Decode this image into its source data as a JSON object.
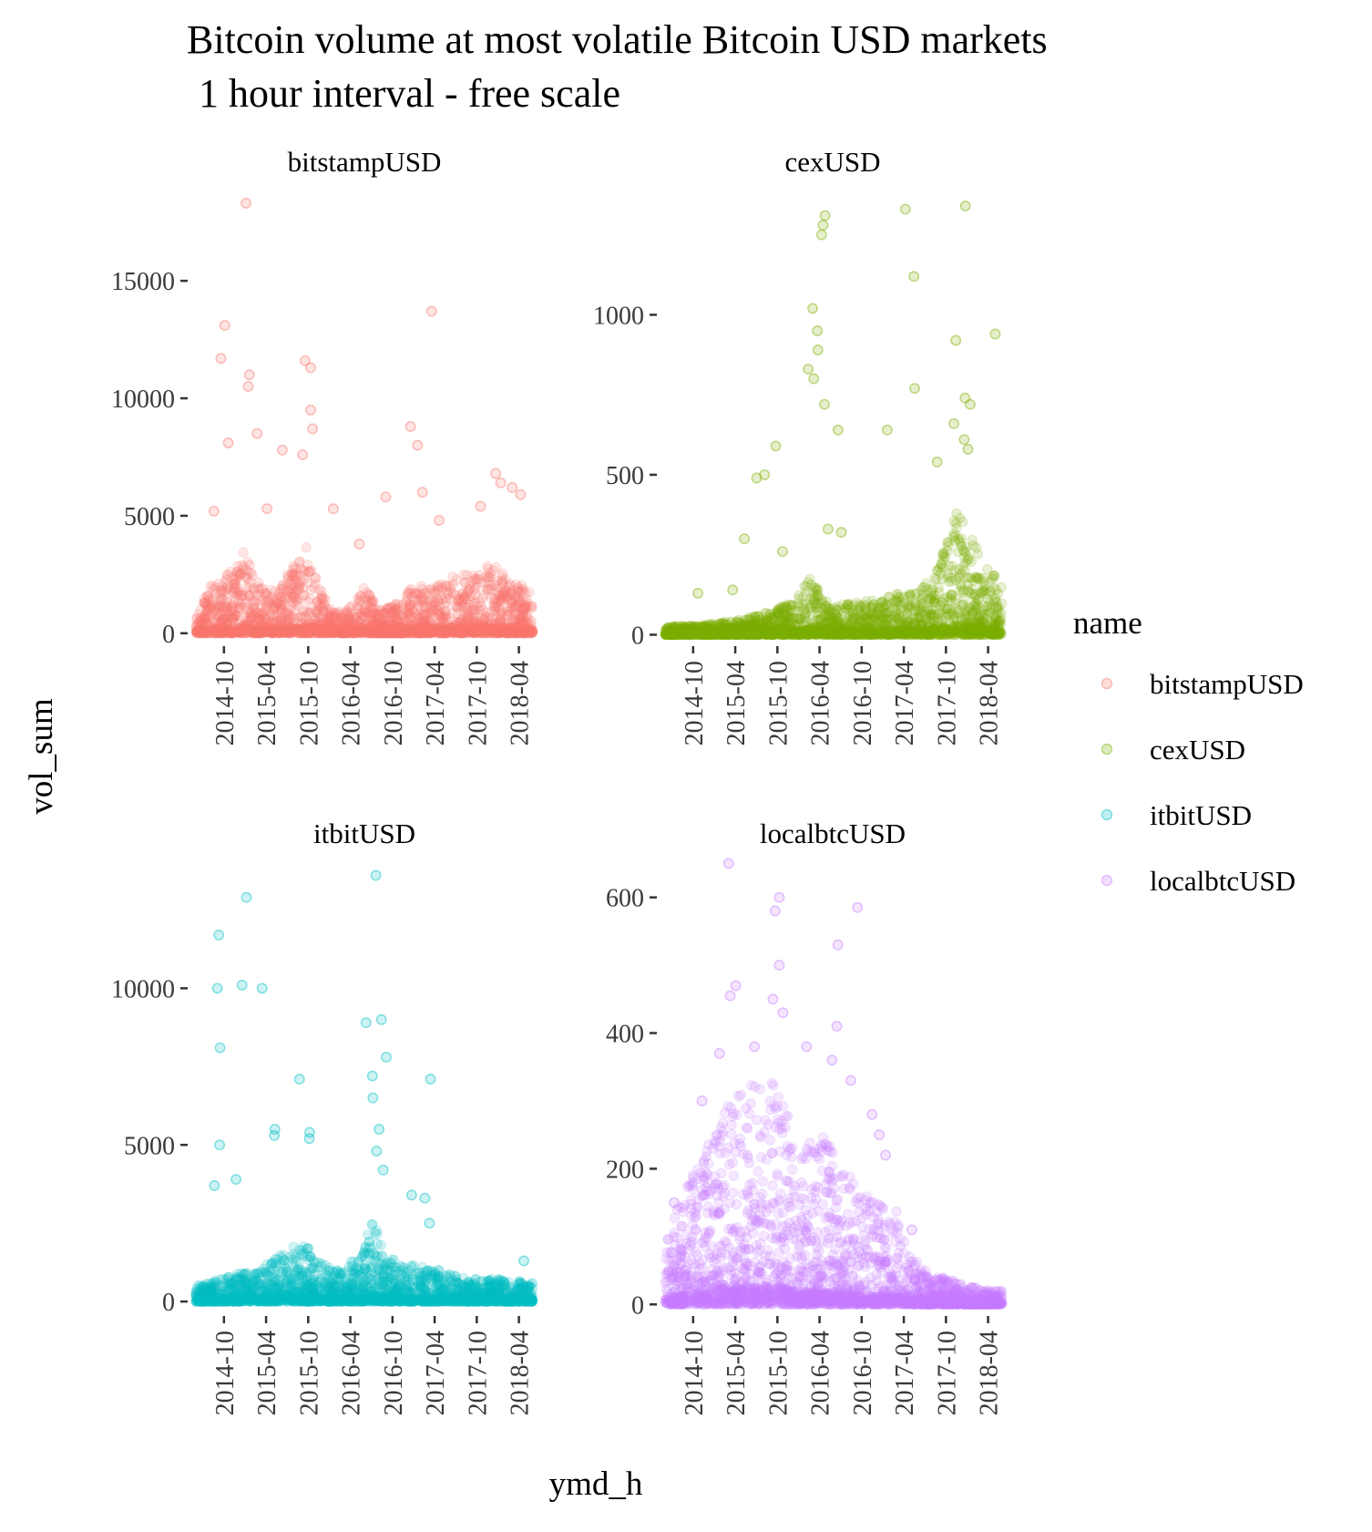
{
  "chart_data": {
    "type": "scatter",
    "title_line1": "Bitcoin volume at most volatile Bitcoin USD markets",
    "title_line2": "1 hour interval - free scale",
    "xlabel": "ymd_h",
    "ylabel": "vol_sum",
    "x_tick_labels": [
      "2014-10",
      "2015-04",
      "2015-10",
      "2016-04",
      "2016-10",
      "2017-04",
      "2017-10",
      "2018-04"
    ],
    "x_range": [
      "2014-06",
      "2018-06"
    ],
    "legend": {
      "title": "name",
      "placement": "right",
      "entries": [
        {
          "label": "bitstampUSD",
          "color": "#F8766D"
        },
        {
          "label": "cexUSD",
          "color": "#7CAE00"
        },
        {
          "label": "itbitUSD",
          "color": "#00BFC4"
        },
        {
          "label": "localbtcUSD",
          "color": "#C77CFF"
        }
      ]
    },
    "panels": [
      {
        "name": "bitstampUSD",
        "color": "#F8766D",
        "y_ticks": [
          0,
          5000,
          10000,
          15000
        ],
        "y_tick_labels": [
          "0",
          "5000",
          "10000",
          "15000"
        ],
        "ylim": [
          -200,
          19000
        ],
        "envelope": [
          [
            "2014-06",
            1500
          ],
          [
            "2014-08",
            2000
          ],
          [
            "2014-10",
            2500
          ],
          [
            "2014-12",
            3000
          ],
          [
            "2015-01",
            4500
          ],
          [
            "2015-02",
            2500
          ],
          [
            "2015-04",
            1800
          ],
          [
            "2015-06",
            2000
          ],
          [
            "2015-08",
            3000
          ],
          [
            "2015-09",
            3500
          ],
          [
            "2015-10",
            4000
          ],
          [
            "2015-11",
            2500
          ],
          [
            "2016-01",
            1200
          ],
          [
            "2016-03",
            800
          ],
          [
            "2016-06",
            2000
          ],
          [
            "2016-08",
            1000
          ],
          [
            "2016-10",
            1200
          ],
          [
            "2017-01",
            2000
          ],
          [
            "2017-04",
            2000
          ],
          [
            "2017-07",
            2500
          ],
          [
            "2017-10",
            2500
          ],
          [
            "2017-12",
            3000
          ],
          [
            "2018-02",
            2500
          ],
          [
            "2018-06",
            1800
          ]
        ],
        "outliers": [
          [
            "2014-10",
            13100
          ],
          [
            "2014-09",
            11700
          ],
          [
            "2014-10",
            8100
          ],
          [
            "2015-01",
            18300
          ],
          [
            "2015-01",
            11000
          ],
          [
            "2015-01",
            10500
          ],
          [
            "2015-02",
            8500
          ],
          [
            "2015-06",
            7800
          ],
          [
            "2015-09",
            11600
          ],
          [
            "2015-10",
            11300
          ],
          [
            "2015-10",
            9500
          ],
          [
            "2015-10",
            8700
          ],
          [
            "2015-09",
            7600
          ],
          [
            "2016-01",
            5300
          ],
          [
            "2016-05",
            3800
          ],
          [
            "2016-09",
            5800
          ],
          [
            "2016-12",
            8800
          ],
          [
            "2017-01",
            8000
          ],
          [
            "2017-03",
            13700
          ],
          [
            "2017-02",
            6000
          ],
          [
            "2017-04",
            4800
          ],
          [
            "2017-10",
            5400
          ],
          [
            "2017-12",
            6800
          ],
          [
            "2018-01",
            6400
          ],
          [
            "2018-03",
            6200
          ],
          [
            "2018-04",
            5900
          ],
          [
            "2014-08",
            5200
          ],
          [
            "2015-04",
            5300
          ]
        ]
      },
      {
        "name": "cexUSD",
        "color": "#7CAE00",
        "y_ticks": [
          0,
          500,
          1000
        ],
        "y_tick_labels": [
          "0",
          "500",
          "1000"
        ],
        "ylim": [
          -10,
          1400
        ],
        "envelope": [
          [
            "2014-06",
            25
          ],
          [
            "2014-10",
            30
          ],
          [
            "2015-01",
            35
          ],
          [
            "2015-04",
            45
          ],
          [
            "2015-07",
            60
          ],
          [
            "2015-10",
            80
          ],
          [
            "2016-01",
            120
          ],
          [
            "2016-02",
            170
          ],
          [
            "2016-03",
            190
          ],
          [
            "2016-04",
            130
          ],
          [
            "2016-06",
            90
          ],
          [
            "2016-09",
            100
          ],
          [
            "2016-12",
            110
          ],
          [
            "2017-03",
            130
          ],
          [
            "2017-06",
            140
          ],
          [
            "2017-09",
            220
          ],
          [
            "2017-11",
            350
          ],
          [
            "2017-12",
            420
          ],
          [
            "2018-01",
            340
          ],
          [
            "2018-03",
            250
          ],
          [
            "2018-06",
            150
          ]
        ],
        "outliers": [
          [
            "2016-04",
            1310
          ],
          [
            "2016-04",
            1280
          ],
          [
            "2016-04",
            1250
          ],
          [
            "2017-04",
            1330
          ],
          [
            "2017-05",
            1120
          ],
          [
            "2017-12",
            1340
          ],
          [
            "2016-03",
            1020
          ],
          [
            "2016-03",
            950
          ],
          [
            "2016-03",
            890
          ],
          [
            "2016-02",
            830
          ],
          [
            "2016-03",
            800
          ],
          [
            "2016-04",
            720
          ],
          [
            "2016-06",
            640
          ],
          [
            "2015-09",
            590
          ],
          [
            "2015-07",
            490
          ],
          [
            "2015-08",
            500
          ],
          [
            "2017-01",
            640
          ],
          [
            "2017-05",
            770
          ],
          [
            "2017-11",
            920
          ],
          [
            "2018-05",
            940
          ],
          [
            "2017-12",
            740
          ],
          [
            "2018-01",
            720
          ],
          [
            "2017-11",
            660
          ],
          [
            "2017-08",
            540
          ],
          [
            "2017-12",
            610
          ],
          [
            "2018-01",
            580
          ],
          [
            "2014-10",
            130
          ],
          [
            "2015-03",
            140
          ],
          [
            "2015-05",
            300
          ],
          [
            "2015-10",
            260
          ],
          [
            "2016-05",
            330
          ],
          [
            "2016-07",
            320
          ]
        ]
      },
      {
        "name": "itbitUSD",
        "color": "#00BFC4",
        "y_ticks": [
          0,
          5000,
          10000
        ],
        "y_tick_labels": [
          "0",
          "5000",
          "10000"
        ],
        "ylim": [
          -200,
          14200
        ],
        "envelope": [
          [
            "2014-06",
            500
          ],
          [
            "2014-09",
            700
          ],
          [
            "2014-12",
            900
          ],
          [
            "2015-03",
            1000
          ],
          [
            "2015-06",
            1500
          ],
          [
            "2015-09",
            2000
          ],
          [
            "2015-12",
            1200
          ],
          [
            "2016-03",
            1000
          ],
          [
            "2016-06",
            1800
          ],
          [
            "2016-07",
            2800
          ],
          [
            "2016-09",
            1500
          ],
          [
            "2016-12",
            1200
          ],
          [
            "2017-03",
            1200
          ],
          [
            "2017-06",
            900
          ],
          [
            "2017-09",
            700
          ],
          [
            "2017-12",
            800
          ],
          [
            "2018-03",
            700
          ],
          [
            "2018-06",
            600
          ]
        ],
        "outliers": [
          [
            "2014-09",
            11700
          ],
          [
            "2014-09",
            10000
          ],
          [
            "2014-09",
            8100
          ],
          [
            "2014-09",
            5000
          ],
          [
            "2015-01",
            12900
          ],
          [
            "2014-12",
            10100
          ],
          [
            "2015-03",
            10000
          ],
          [
            "2015-05",
            5500
          ],
          [
            "2015-05",
            5300
          ],
          [
            "2015-08",
            7100
          ],
          [
            "2015-10",
            5400
          ],
          [
            "2015-10",
            5200
          ],
          [
            "2014-08",
            3700
          ],
          [
            "2014-11",
            3900
          ],
          [
            "2016-07",
            13600
          ],
          [
            "2016-06",
            8900
          ],
          [
            "2016-08",
            9000
          ],
          [
            "2016-09",
            7800
          ],
          [
            "2016-07",
            7200
          ],
          [
            "2016-07",
            6500
          ],
          [
            "2016-08",
            5500
          ],
          [
            "2016-07",
            4800
          ],
          [
            "2016-08",
            4200
          ],
          [
            "2017-03",
            7100
          ],
          [
            "2016-12",
            3400
          ],
          [
            "2017-02",
            3300
          ],
          [
            "2017-03",
            2500
          ],
          [
            "2018-04",
            1300
          ]
        ]
      },
      {
        "name": "localbtcUSD",
        "color": "#C77CFF",
        "y_ticks": [
          0,
          200,
          400,
          600
        ],
        "y_tick_labels": [
          "0",
          "200",
          "400",
          "600"
        ],
        "ylim": [
          -5,
          660
        ],
        "envelope": [
          [
            "2014-06",
            100
          ],
          [
            "2014-09",
            180
          ],
          [
            "2014-12",
            240
          ],
          [
            "2015-03",
            300
          ],
          [
            "2015-06",
            330
          ],
          [
            "2015-09",
            330
          ],
          [
            "2015-11",
            300
          ],
          [
            "2016-01",
            210
          ],
          [
            "2016-03",
            260
          ],
          [
            "2016-05",
            250
          ],
          [
            "2016-07",
            200
          ],
          [
            "2016-09",
            190
          ],
          [
            "2016-12",
            170
          ],
          [
            "2017-03",
            140
          ],
          [
            "2017-05",
            70
          ],
          [
            "2017-08",
            45
          ],
          [
            "2017-11",
            35
          ],
          [
            "2018-02",
            25
          ],
          [
            "2018-06",
            20
          ]
        ],
        "outliers": [
          [
            "2015-03",
            650
          ],
          [
            "2015-09",
            580
          ],
          [
            "2015-10",
            600
          ],
          [
            "2015-10",
            500
          ],
          [
            "2016-06",
            530
          ],
          [
            "2016-09",
            585
          ],
          [
            "2015-04",
            470
          ],
          [
            "2015-03",
            455
          ],
          [
            "2015-09",
            450
          ],
          [
            "2015-10",
            430
          ],
          [
            "2016-02",
            380
          ],
          [
            "2016-06",
            410
          ],
          [
            "2016-05",
            360
          ],
          [
            "2016-08",
            330
          ],
          [
            "2016-11",
            280
          ],
          [
            "2016-12",
            250
          ],
          [
            "2017-01",
            220
          ],
          [
            "2017-05",
            110
          ],
          [
            "2014-11",
            300
          ],
          [
            "2015-01",
            370
          ],
          [
            "2015-06",
            380
          ],
          [
            "2014-07",
            150
          ]
        ]
      }
    ]
  }
}
